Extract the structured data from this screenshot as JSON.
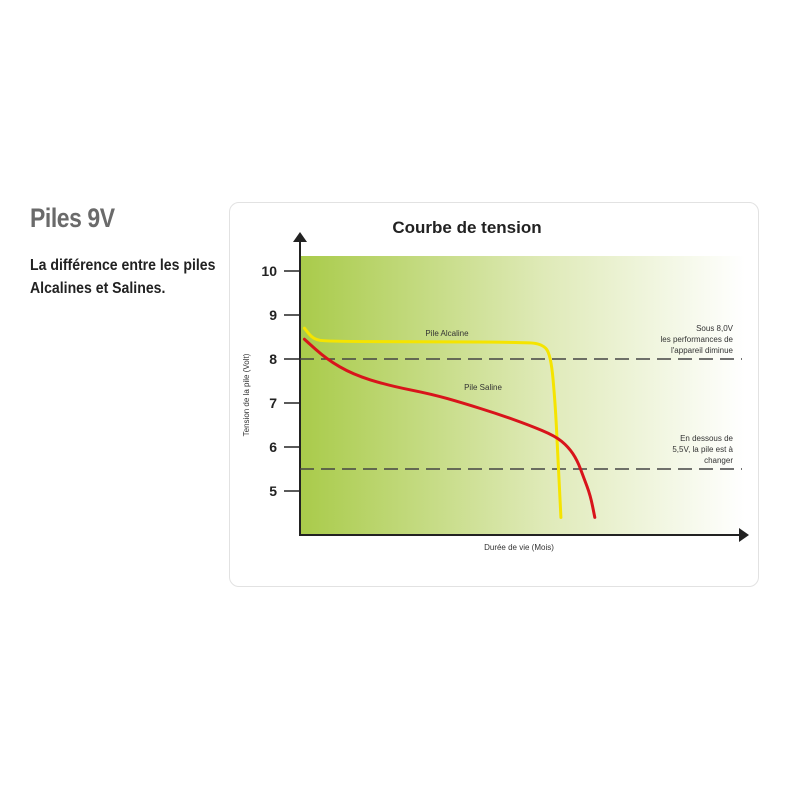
{
  "heading": "Piles 9V",
  "subheading": "La différence entre les piles Alcalines et Salines.",
  "chart_data": {
    "type": "line",
    "title": "Courbe de tension",
    "xlabel": "Durée de vie  (Mois)",
    "ylabel": "Tension de la pile  (Volt)",
    "ylim": [
      4,
      10.3
    ],
    "yticks": [
      "10",
      "9",
      "8",
      "7",
      "6",
      "5"
    ],
    "grid": false,
    "background": "green-to-white gradient",
    "series": [
      {
        "name": "Pile  Alcaline",
        "color": "#f5e400",
        "x": [
          1,
          3,
          6,
          30,
          50,
          55,
          57,
          58,
          58.5,
          59,
          59.3
        ],
        "y": [
          8.7,
          8.45,
          8.4,
          8.39,
          8.38,
          8.35,
          8.1,
          7.0,
          6.0,
          5.0,
          4.4
        ]
      },
      {
        "name": "Pile  Saline",
        "color": "#d8141b",
        "x": [
          1,
          6,
          12,
          20,
          30,
          37,
          45,
          52,
          58,
          61,
          63,
          64.5,
          66,
          67
        ],
        "y": [
          8.45,
          8.0,
          7.65,
          7.4,
          7.2,
          7.0,
          6.75,
          6.5,
          6.25,
          6.0,
          5.7,
          5.3,
          4.9,
          4.4
        ]
      }
    ],
    "reference_lines": [
      {
        "y": 8.0,
        "label": [
          "Sous 8,0V",
          "les performances de",
          "l'appareil diminue"
        ]
      },
      {
        "y": 5.5,
        "label": [
          "En dessous de",
          "5,5V, la pile est à",
          "changer"
        ]
      }
    ]
  }
}
